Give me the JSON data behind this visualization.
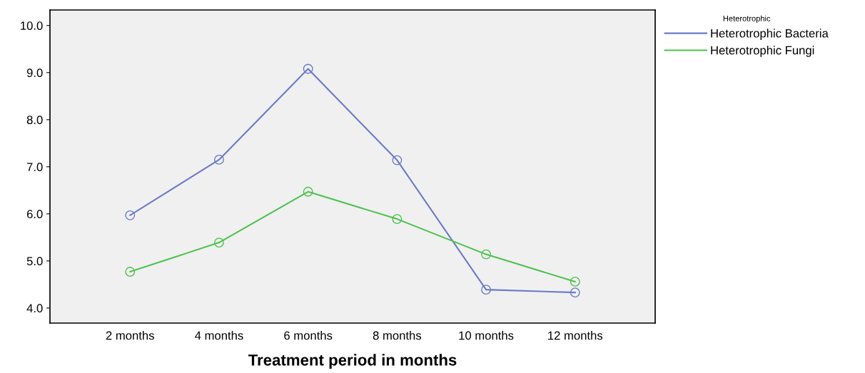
{
  "chart_data": {
    "type": "line",
    "xlabel": "Treatment period in months",
    "legend_title": "Heterotrophic",
    "categories": [
      "2 months",
      "4 months",
      "6 months",
      "8 months",
      "10 months",
      "12 months"
    ],
    "series": [
      {
        "name": "Heterotrophic Bacteria",
        "color": "#6a7ac8",
        "values": [
          5.97,
          7.15,
          9.08,
          7.14,
          4.39,
          4.33
        ]
      },
      {
        "name": "Heterotrophic Fungi",
        "color": "#4cc24c",
        "values": [
          4.77,
          5.39,
          6.47,
          5.89,
          5.14,
          4.56
        ]
      }
    ],
    "ylim": [
      3.68,
      10.33
    ],
    "yticks": [
      {
        "value": 4,
        "label": "4.0"
      },
      {
        "value": 5,
        "label": "5.0"
      },
      {
        "value": 6,
        "label": "6.0"
      },
      {
        "value": 7,
        "label": "7.0"
      },
      {
        "value": 8,
        "label": "8.0"
      },
      {
        "value": 9,
        "label": "9.0"
      },
      {
        "value": 10,
        "label": "10.0"
      }
    ],
    "marker": "circle",
    "line_style": "solid",
    "legend": "top right",
    "grid": false
  }
}
